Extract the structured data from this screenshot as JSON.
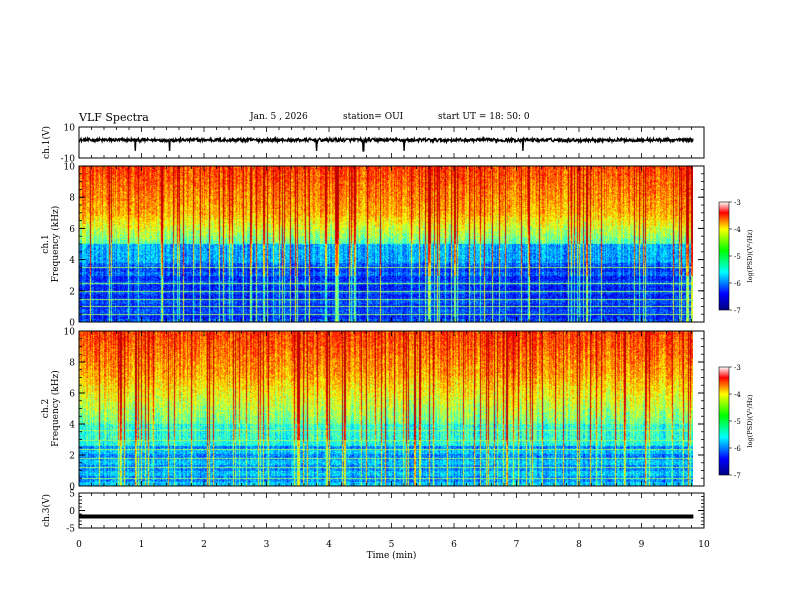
{
  "header": {
    "title": "VLF Spectra",
    "date": "Jan. 5 , 2026",
    "station": "station= OUI",
    "start": "start UT = 18: 50: 0"
  },
  "chart_data": [
    {
      "type": "line",
      "name": "ch1-waveform",
      "ylabel": "ch.1(V)",
      "ylim": [
        -10,
        10
      ],
      "yticks": [
        10,
        -10
      ],
      "xlim": [
        0,
        9.83
      ],
      "baseline": 1.6,
      "spike_times": [
        0.9,
        4.55,
        5.2,
        1.45,
        3.8,
        7.1
      ]
    },
    {
      "type": "heatmap",
      "name": "ch1-spectrogram",
      "ylabel": "Frequency (kHz)",
      "channel_label": "ch.1",
      "ylim": [
        0,
        10
      ],
      "yticks": [
        0,
        2,
        4,
        6,
        8,
        10
      ],
      "xlim": [
        0,
        9.83
      ],
      "colorbar": {
        "label": "log(PSD)(V²/Hz)",
        "range": [
          -7,
          -3
        ],
        "ticks": [
          "-3",
          "-4",
          "-5",
          "-6",
          "-7"
        ]
      },
      "hum_lines_khz": [
        0.5,
        1.0,
        1.5,
        2.0,
        2.5,
        3.5
      ]
    },
    {
      "type": "heatmap",
      "name": "ch2-spectrogram",
      "ylabel": "Frequency (kHz)",
      "channel_label": "ch.2",
      "ylim": [
        0,
        10
      ],
      "yticks": [
        0,
        2,
        4,
        6,
        8,
        10
      ],
      "xlim": [
        0,
        9.83
      ],
      "colorbar": {
        "label": "log(PSD)(V²/Hz)",
        "range": [
          -7,
          -3
        ],
        "ticks": [
          "-3",
          "-4",
          "-5",
          "-6",
          "-7"
        ]
      },
      "hum_lines_khz": [
        0.5,
        1.2,
        1.8,
        2.4,
        3.0,
        3.6
      ]
    },
    {
      "type": "line",
      "name": "ch3-waveform",
      "ylabel": "ch.3(V)",
      "ylim": [
        -5,
        5
      ],
      "yticks": [
        5,
        0,
        -5
      ],
      "xlim": [
        0,
        9.83
      ],
      "baseline": -1.7
    }
  ],
  "xaxis": {
    "label": "Time (min)",
    "range": [
      0,
      10
    ],
    "ticks": [
      "0",
      "1",
      "2",
      "3",
      "4",
      "5",
      "6",
      "7",
      "8",
      "9",
      "10"
    ]
  },
  "colors": {
    "low": "#00008b",
    "mid": "#00ff00",
    "high": "#ff0000",
    "trace": "#000000"
  }
}
